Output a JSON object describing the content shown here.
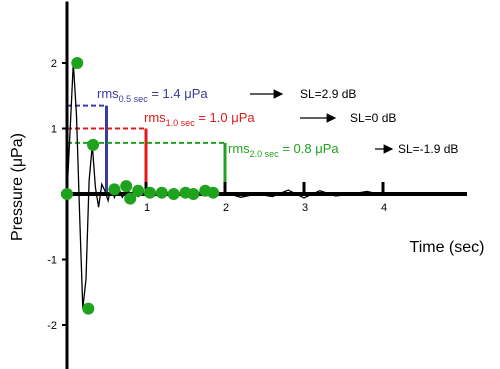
{
  "chart_data": {
    "type": "line",
    "xlabel": "Time (sec)",
    "ylabel": "Pressure (μPa)",
    "x_ticks": [
      {
        "value": 1,
        "label": "1"
      },
      {
        "value": 2,
        "label": "2"
      },
      {
        "value": 3,
        "label": "3"
      },
      {
        "value": 4,
        "label": "4"
      }
    ],
    "y_ticks": [
      {
        "value": 2,
        "label": "2"
      },
      {
        "value": 1,
        "label": "1"
      },
      {
        "value": -1,
        "label": "-1"
      },
      {
        "value": -2,
        "label": "-2"
      }
    ],
    "xlim": [
      -0.05,
      5.0
    ],
    "ylim": [
      -2.8,
      3.0
    ],
    "series": [
      {
        "color": "#000000",
        "x": [
          0,
          0.04,
          0.08,
          0.12,
          0.16,
          0.2,
          0.24,
          0.28,
          0.32,
          0.36,
          0.4,
          0.44,
          0.48,
          0.52,
          0.56,
          0.6,
          0.65,
          0.7,
          0.75,
          0.8,
          0.9,
          1.0,
          1.1,
          1.2,
          1.4,
          1.6,
          1.8,
          2.0,
          2.2,
          2.4,
          2.6,
          2.8,
          3.0,
          3.2,
          3.4,
          3.6,
          3.8,
          4.0,
          4.2,
          4.4,
          4.6,
          4.8
        ],
        "values": [
          0,
          1.0,
          2.0,
          1.2,
          -0.3,
          -1.75,
          -1.3,
          0.2,
          0.75,
          0.1,
          -0.2,
          0.15,
          0.05,
          -0.1,
          0.12,
          -0.05,
          0.1,
          -0.05,
          0.05,
          0.02,
          -0.04,
          0.03,
          -0.03,
          0.02,
          -0.02,
          0.01,
          -0.01,
          0.02,
          -0.05,
          0.0,
          -0.04,
          0.06,
          -0.06,
          0.05,
          -0.03,
          0.0,
          0.04,
          -0.02,
          0.02,
          -0.02,
          0.01,
          0.0
        ]
      }
    ],
    "samples": {
      "color": "#1fa31f",
      "x": [
        0.0,
        0.13,
        0.27,
        0.33,
        0.6,
        0.75,
        0.8,
        0.9,
        1.05,
        1.2,
        1.35,
        1.5,
        1.6,
        1.75,
        1.85
      ],
      "values": [
        0.0,
        2.0,
        -1.75,
        0.75,
        0.07,
        0.12,
        -0.07,
        0.05,
        0.02,
        0.02,
        0.0,
        0.02,
        0.0,
        0.05,
        0.02
      ]
    },
    "rms_markers": [
      {
        "window": 0.5,
        "rms": 1.35,
        "color": "#3b3b9b",
        "label_main": "rms",
        "label_sub": "0.5 sec",
        "label_value": " = 1.4 μPa",
        "sl_label": "SL=2.9 dB"
      },
      {
        "window": 1.0,
        "rms": 1.0,
        "color": "#e01a1a",
        "label_main": "rms",
        "label_sub": "1.0 sec",
        "label_value": " = 1.0 μPa",
        "sl_label": "SL=0 dB"
      },
      {
        "window": 2.0,
        "rms": 0.78,
        "color": "#1fa31f",
        "label_main": "rms",
        "label_sub": "2.0 sec",
        "label_value": " = 0.8 μPa",
        "sl_label": "SL=-1.9 dB"
      }
    ]
  }
}
